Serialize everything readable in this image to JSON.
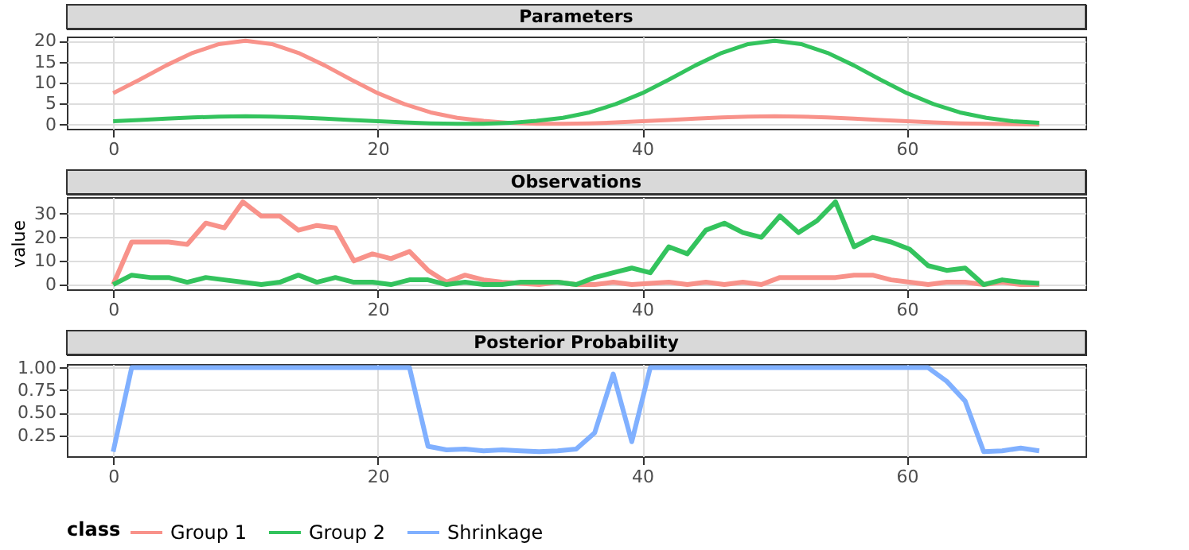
{
  "chart_data": [
    {
      "type": "line",
      "title": "Parameters",
      "x": [
        0,
        2,
        4,
        6,
        8,
        10,
        12,
        14,
        16,
        18,
        20,
        22,
        24,
        26,
        28,
        30,
        32,
        34,
        36,
        38,
        40,
        42,
        44,
        46,
        48,
        50,
        52,
        54,
        56,
        58,
        60,
        62,
        64,
        66,
        68,
        70
      ],
      "xlim": [
        -3.5,
        73.5
      ],
      "xticks": [
        0,
        20,
        40,
        60
      ],
      "ylim": [
        -1,
        21
      ],
      "yticks": [
        0,
        5,
        10,
        15,
        20
      ],
      "grid": true,
      "legend": "bottom",
      "series": [
        {
          "name": "Group 1",
          "color": "#f8928a",
          "values": [
            7.5,
            10.7,
            14.1,
            17.1,
            19.2,
            20,
            19.2,
            17.1,
            14.1,
            10.7,
            7.5,
            4.9,
            2.9,
            1.6,
            0.9,
            0.4,
            0.2,
            0.2,
            0.3,
            0.5,
            0.8,
            1.1,
            1.4,
            1.7,
            1.9,
            2,
            1.9,
            1.7,
            1.4,
            1.1,
            0.8,
            0.5,
            0.3,
            0.2,
            0.1,
            0
          ]
        },
        {
          "name": "Group 2",
          "color": "#33c35d",
          "values": [
            0.8,
            1.1,
            1.4,
            1.7,
            1.9,
            2,
            1.9,
            1.7,
            1.4,
            1.1,
            0.8,
            0.5,
            0.3,
            0.2,
            0.2,
            0.4,
            0.9,
            1.6,
            2.9,
            4.9,
            7.5,
            10.7,
            14.1,
            17.1,
            19.2,
            20,
            19.2,
            17.1,
            14.1,
            10.7,
            7.5,
            4.9,
            2.9,
            1.6,
            0.8,
            0.4
          ]
        }
      ]
    },
    {
      "type": "line",
      "title": "Observations",
      "ylabel": "value",
      "x": [
        0,
        1.4,
        2.8,
        4.2,
        5.6,
        7,
        8.4,
        9.8,
        11.2,
        12.6,
        14,
        15.4,
        16.8,
        18.2,
        19.6,
        21,
        22.4,
        23.8,
        25.2,
        26.6,
        28,
        29.4,
        30.8,
        32.2,
        33.6,
        35,
        36.4,
        37.8,
        39.2,
        40.6,
        42,
        43.4,
        44.8,
        46.2,
        47.6,
        49,
        50.4,
        51.8,
        53.2,
        54.6,
        56,
        57.4,
        58.8,
        60.2,
        61.6,
        63,
        64.4,
        65.8,
        67.2,
        68.6,
        70
      ],
      "xlim": [
        -3.5,
        73.5
      ],
      "xticks": [
        0,
        20,
        40,
        60
      ],
      "ylim": [
        -2,
        37
      ],
      "yticks": [
        0,
        10,
        20,
        30
      ],
      "grid": true,
      "legend": "bottom",
      "series": [
        {
          "name": "Group 1",
          "color": "#f8928a",
          "values": [
            0,
            18,
            18,
            18,
            17,
            26,
            24,
            35,
            29,
            29,
            23,
            25,
            24,
            10,
            13,
            11,
            14,
            6,
            1,
            4,
            2,
            1,
            0.5,
            0,
            1,
            0,
            0,
            1,
            0,
            0.5,
            1,
            0,
            1,
            0,
            1,
            0,
            3,
            3,
            3,
            3,
            4,
            4,
            2,
            1,
            0,
            1,
            1,
            0,
            1,
            0,
            0
          ]
        },
        {
          "name": "Group 2",
          "color": "#33c35d",
          "values": [
            0,
            4,
            3,
            3,
            1,
            3,
            2,
            1,
            0,
            1,
            4,
            1,
            3,
            1,
            1,
            0,
            2,
            2,
            0,
            1,
            0,
            0,
            1,
            1,
            1,
            0,
            3,
            5,
            7,
            5,
            16,
            13,
            23,
            26,
            22,
            20,
            29,
            22,
            27,
            35,
            16,
            20,
            18,
            15,
            8,
            6,
            7,
            0,
            2,
            1,
            0.5
          ]
        }
      ]
    },
    {
      "type": "line",
      "title": "Posterior Probability",
      "x": [
        0,
        1.4,
        2.8,
        4.2,
        5.6,
        7,
        8.4,
        9.8,
        11.2,
        12.6,
        14,
        15.4,
        16.8,
        18.2,
        19.6,
        21,
        22.4,
        23.8,
        25.2,
        26.6,
        28,
        29.4,
        30.8,
        32.2,
        33.6,
        35,
        36.4,
        37.8,
        39.2,
        40.6,
        42,
        43.4,
        44.8,
        46.2,
        47.6,
        49,
        50.4,
        51.8,
        53.2,
        54.6,
        56,
        57.4,
        58.8,
        60.2,
        61.6,
        63,
        64.4,
        65.8,
        67.2,
        68.6,
        70
      ],
      "xlim": [
        -3.5,
        73.5
      ],
      "xticks": [
        0,
        20,
        40,
        60
      ],
      "ylim": [
        0.02,
        1.04
      ],
      "yticks": [
        0.25,
        {
          "value": 0.5,
          "label": "0.50"
        },
        0.75,
        {
          "value": 1,
          "label": "1.00"
        }
      ],
      "grid": true,
      "legend": "bottom",
      "legend_title": "class",
      "series": [
        {
          "name": "Shrinkage",
          "color": "#80b0ff",
          "values": [
            0.07,
            1,
            1,
            1,
            1,
            1,
            1,
            1,
            1,
            1,
            1,
            1,
            1,
            1,
            1,
            1,
            1,
            0.13,
            0.09,
            0.1,
            0.08,
            0.09,
            0.08,
            0.07,
            0.08,
            0.1,
            0.28,
            0.93,
            0.18,
            1,
            1,
            1,
            1,
            1,
            1,
            1,
            1,
            1,
            1,
            1,
            1,
            1,
            1,
            1,
            1,
            0.85,
            0.63,
            0.07,
            0.08,
            0.11,
            0.08
          ]
        }
      ]
    }
  ]
}
